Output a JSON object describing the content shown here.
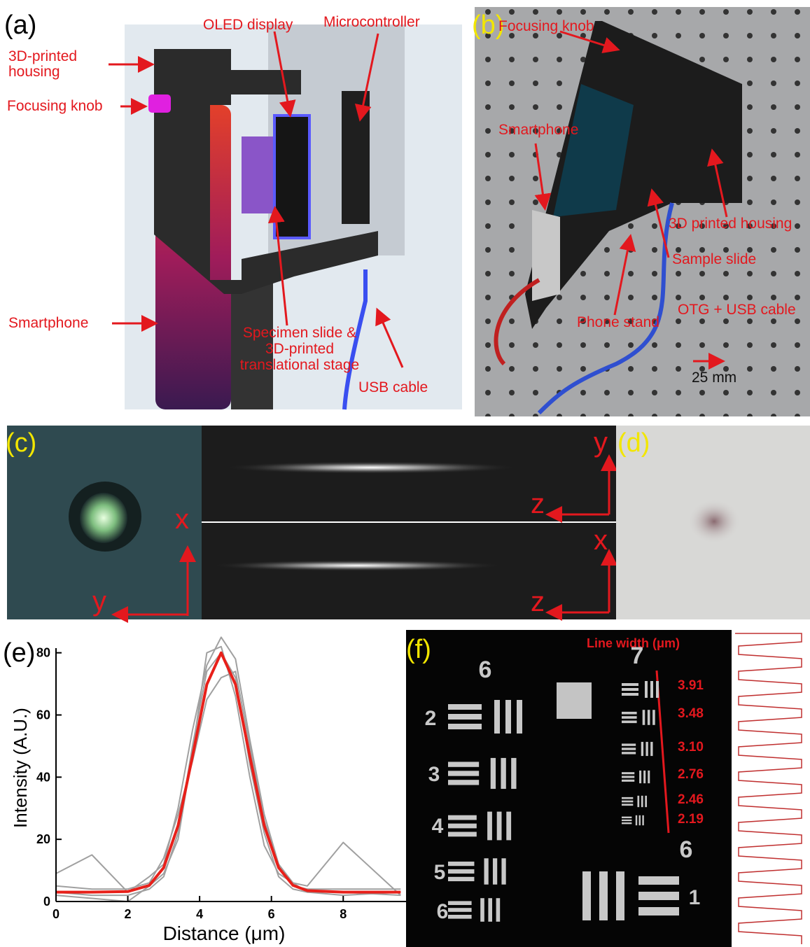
{
  "panel_a": {
    "label": "(a)",
    "housing": [
      "3D-printed",
      "housing"
    ],
    "knob": "Focusing knob",
    "oled": "OLED display",
    "mcu": "Microcontroller",
    "phone": "Smartphone",
    "slide": [
      "Specimen slide &",
      "3D-printed",
      "translational stage"
    ],
    "usb": "USB cable"
  },
  "panel_b": {
    "label": "(b)",
    "knob": "Focusing knob",
    "phone": "Smartphone",
    "housing": "3D printed housing",
    "slide": "Sample slide",
    "stand": "Phone stand",
    "cable": "OTG + USB cable",
    "scale": "25 mm"
  },
  "panel_c": {
    "label": "(c)",
    "axes": [
      "x",
      "y",
      "y",
      "z",
      "x",
      "z"
    ]
  },
  "panel_d": {
    "label": "(d)"
  },
  "panel_e": {
    "label": "(e)"
  },
  "chart_data": {
    "type": "line",
    "x_label": "Distance (μm)",
    "y_label": "Intensity (A.U.)",
    "x": [
      0,
      1,
      2,
      2.6,
      3.0,
      3.4,
      3.8,
      4.2,
      4.6,
      5.0,
      5.4,
      5.8,
      6.2,
      6.6,
      7,
      8,
      9.6
    ],
    "series": [
      {
        "color": "#a0a0a0",
        "values": [
          9,
          15,
          3,
          8,
          12,
          30,
          55,
          76,
          85,
          78,
          52,
          28,
          12,
          6,
          5,
          19,
          2
        ]
      },
      {
        "color": "#a0a0a0",
        "values": [
          3,
          2,
          2,
          4,
          8,
          22,
          50,
          74,
          80,
          72,
          44,
          22,
          8,
          4,
          3,
          2,
          3
        ]
      },
      {
        "color": "#a0a0a0",
        "values": [
          5,
          4,
          4,
          6,
          14,
          28,
          45,
          65,
          72,
          74,
          50,
          26,
          12,
          5,
          4,
          4,
          4
        ]
      },
      {
        "color": "#a0a0a0",
        "values": [
          2,
          1,
          0,
          5,
          9,
          20,
          48,
          80,
          82,
          66,
          40,
          18,
          9,
          6,
          3,
          3,
          2
        ]
      },
      {
        "color": "#e8201a",
        "values": [
          3,
          3,
          3.2,
          5.2,
          10.9,
          24.4,
          46.6,
          69.8,
          80,
          69.8,
          46.6,
          24.4,
          10.9,
          5.2,
          3.5,
          3,
          3
        ]
      }
    ],
    "xlim": [
      0,
      9.75
    ],
    "ylim": [
      0,
      86
    ],
    "xticks": [
      0,
      2,
      4,
      6,
      8
    ],
    "yticks": [
      0,
      20,
      40,
      60,
      80
    ]
  },
  "panel_f": {
    "label": "(f)",
    "title": "Line width (μm)",
    "widths": [
      "3.91",
      "3.48",
      "3.10",
      "2.76",
      "2.46",
      "2.19"
    ],
    "groups": [
      "6",
      "7",
      "6"
    ],
    "elements": [
      "2",
      "3",
      "4",
      "5",
      "6",
      "1"
    ]
  }
}
